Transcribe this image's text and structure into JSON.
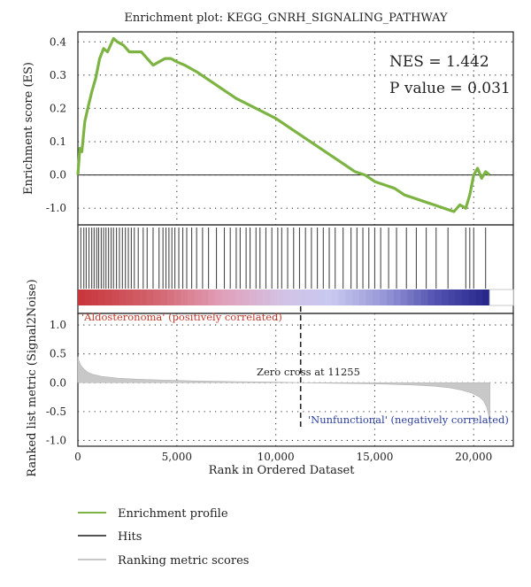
{
  "figure_title": "Enrichment plot: KEGG_GNRH_SIGNALING_PATHWAY",
  "stats": {
    "nes_label": "NES = 1.442",
    "pvalue_label": "P value = 0.031"
  },
  "top_panel": {
    "ylabel": "Enrichment score (ES)",
    "yticks": [
      "0.4",
      "0.3",
      "0.2",
      "0.1",
      "0.0",
      "-1.0"
    ]
  },
  "bottom_panel": {
    "ylabel": "Ranked list metric (Signal2Noise)",
    "yticks": [
      "1.0",
      "0.5",
      "0.0",
      "-0.5",
      "-1.0"
    ],
    "xlabel": "Rank in Ordered Dataset",
    "xticks": [
      "0",
      "5,000",
      "10,000",
      "15,000",
      "20,000"
    ],
    "positive_label": "'Aldosteronoma' (positively correlated)",
    "negative_label": "'Nunfunctional' (negatively correlated)",
    "zero_cross_label": "Zero cross at 11255"
  },
  "legend": [
    {
      "label": "Enrichment profile",
      "color": "#7cb342"
    },
    {
      "label": "Hits",
      "color": "#555555"
    },
    {
      "label": "Ranking metric scores",
      "color": "#c8c8c8"
    }
  ],
  "colors": {
    "profile": "#7cb342",
    "hits": "#4a4a4a",
    "metric": "#c8c8c8",
    "positive_text": "#c0392b",
    "negative_text": "#2c3e9a"
  },
  "chart_data": {
    "type": "line",
    "title": "Enrichment plot: KEGG_GNRH_SIGNALING_PATHWAY",
    "xlabel": "Rank in Ordered Dataset",
    "xlim": [
      0,
      22000
    ],
    "enrichment_profile": {
      "ylabel": "Enrichment score (ES)",
      "ylim": [
        -0.15,
        0.43
      ],
      "x": [
        0,
        100,
        200,
        350,
        500,
        700,
        900,
        1100,
        1300,
        1500,
        1650,
        1800,
        2000,
        2300,
        2600,
        2900,
        3200,
        3500,
        3800,
        4100,
        4400,
        4700,
        5000,
        5400,
        6000,
        7000,
        8000,
        9000,
        10000,
        11000,
        12000,
        13000,
        14000,
        14500,
        15000,
        15500,
        16000,
        16500,
        17000,
        17500,
        18000,
        18500,
        19000,
        19300,
        19600,
        19800,
        20000,
        20200,
        20400,
        20600,
        20800
      ],
      "y": [
        0.0,
        0.08,
        0.07,
        0.16,
        0.2,
        0.25,
        0.29,
        0.35,
        0.38,
        0.37,
        0.39,
        0.41,
        0.4,
        0.39,
        0.37,
        0.37,
        0.37,
        0.35,
        0.33,
        0.34,
        0.35,
        0.35,
        0.34,
        0.33,
        0.31,
        0.27,
        0.23,
        0.2,
        0.17,
        0.13,
        0.09,
        0.05,
        0.01,
        0.0,
        -0.02,
        -0.03,
        -0.04,
        -0.06,
        -0.07,
        -0.08,
        -0.09,
        -0.1,
        -0.11,
        -0.09,
        -0.1,
        -0.06,
        0.0,
        0.02,
        -0.01,
        0.01,
        0.0
      ]
    },
    "hits": [
      150,
      300,
      420,
      560,
      700,
      820,
      950,
      1050,
      1180,
      1300,
      1420,
      1550,
      1680,
      1800,
      1950,
      2100,
      2250,
      2400,
      2550,
      2700,
      2850,
      3050,
      3300,
      3500,
      3800,
      4100,
      4300,
      4450,
      4600,
      4750,
      4900,
      5100,
      5300,
      5500,
      5750,
      6000,
      6300,
      6600,
      7000,
      7400,
      7700,
      8000,
      8200,
      8500,
      8700,
      9000,
      9200,
      9500,
      9800,
      10100,
      10300,
      10600,
      10900,
      11200,
      11500,
      11800,
      12100,
      12400,
      12700,
      13000,
      13400,
      13800,
      14100,
      14400,
      14700,
      15000,
      15300,
      15700,
      16100,
      16600,
      17100,
      17600,
      18100,
      18700,
      19600,
      19800,
      20000,
      20600
    ],
    "ranking_metric": {
      "ylabel": "Ranked list metric (Signal2Noise)",
      "ylim": [
        -1.1,
        1.2
      ],
      "x": [
        0,
        50,
        150,
        300,
        500,
        800,
        1200,
        2000,
        3000,
        4000,
        5000,
        6000,
        7000,
        8000,
        9000,
        10000,
        11000,
        11255,
        12000,
        13000,
        14000,
        15000,
        16000,
        17000,
        18000,
        18800,
        19400,
        19900,
        20300,
        20500,
        20650,
        20750,
        20820
      ],
      "y": [
        0.45,
        0.38,
        0.3,
        0.24,
        0.18,
        0.14,
        0.11,
        0.08,
        0.06,
        0.05,
        0.04,
        0.03,
        0.025,
        0.02,
        0.015,
        0.01,
        0.003,
        0.0,
        -0.005,
        -0.01,
        -0.015,
        -0.02,
        -0.03,
        -0.04,
        -0.06,
        -0.09,
        -0.13,
        -0.18,
        -0.25,
        -0.32,
        -0.42,
        -0.55,
        -0.78
      ]
    },
    "zero_cross": 11255,
    "nes": 1.442,
    "p_value": 0.031
  }
}
